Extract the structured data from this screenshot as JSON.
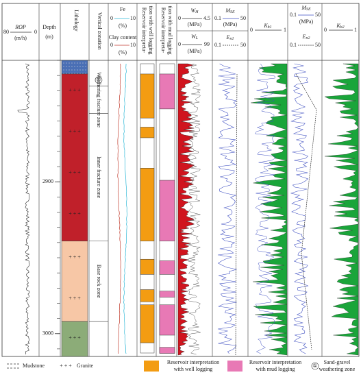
{
  "header": {
    "rop": {
      "min": "80",
      "name": "ROP",
      "unit": "(m/h)",
      "max": "0"
    },
    "depth": {
      "name": "Depth",
      "unit": "(m)"
    },
    "lithology": "Lithology",
    "zonation": "Vertical zonation",
    "fe": {
      "name": "Fe",
      "min": "0",
      "max": "10",
      "unit": "(%)"
    },
    "clay": {
      "name": "Clay content",
      "min": "0",
      "max": "10",
      "unit": "(%)"
    },
    "res_well": [
      "Reservoir interpreta-",
      "tion with well logging"
    ],
    "res_mud": [
      "Reservoir interpreta-",
      "tion with mud logging"
    ],
    "wh": {
      "symbol": "W",
      "sub": "H",
      "min": "0",
      "max": "4.5",
      "unit": "(MPa)"
    },
    "wl": {
      "symbol": "W",
      "sub": "L",
      "min": "0",
      "max": "99",
      "unit": "(MPa)"
    },
    "mse1": {
      "symbol": "M",
      "sub": "SE",
      "min": "0.1",
      "max": "50",
      "unit": "(MPa)"
    },
    "en1": {
      "symbol": "E",
      "sub": "n1",
      "min": "0.1",
      "max": "50"
    },
    "kb1": {
      "symbol": "K",
      "sub": "b1",
      "min": "0",
      "max": "1"
    },
    "mse2": {
      "symbol": "M",
      "sub": "SE",
      "min": "0.1",
      "max": "50",
      "unit": "(MPa)"
    },
    "en2": {
      "symbol": "E",
      "sub": "n2",
      "min": "0.1",
      "max": "50"
    },
    "kb2": {
      "symbol": "K",
      "sub": "b2",
      "min": "0",
      "max": "1"
    }
  },
  "depth_axis": {
    "range": [
      2820,
      3015
    ],
    "ticks": [
      2900,
      3000
    ]
  },
  "lithology": [
    {
      "top": 2820,
      "bottom": 2829,
      "rock": "Mudstone",
      "color": "#4a6fb5"
    },
    {
      "top": 2829,
      "bottom": 2939,
      "rock": "Granite",
      "color": "#c0202a"
    },
    {
      "top": 2939,
      "bottom": 2992,
      "rock": "Granite",
      "color": "#f7c7a6"
    },
    {
      "top": 2992,
      "bottom": 3015,
      "rock": "Granite",
      "color": "#8cac78"
    }
  ],
  "zones": [
    {
      "top": 2829,
      "bottom": 2837,
      "label": "①"
    },
    {
      "top": 2837,
      "bottom": 2855,
      "label": "Weathering fracture zone"
    },
    {
      "top": 2855,
      "bottom": 2939,
      "label": "Inner fracture zone"
    },
    {
      "top": 2939,
      "bottom": 2992,
      "label": "Base rock zone"
    }
  ],
  "reservoir_well": {
    "color": "#f39c12",
    "intervals": [
      [
        2829,
        2858
      ],
      [
        2864,
        2871
      ],
      [
        2891,
        2939
      ],
      [
        2951,
        2961
      ],
      [
        2971,
        2979
      ],
      [
        2981,
        3006
      ]
    ]
  },
  "reservoir_mud": {
    "color": "#e879b5",
    "intervals": [
      [
        2829,
        2852
      ],
      [
        2899,
        2939
      ],
      [
        2952,
        2961
      ],
      [
        2972,
        2976
      ],
      [
        2981,
        3001
      ],
      [
        3009,
        3013
      ]
    ]
  },
  "legend": {
    "mudstone": "Mudstone",
    "granite": "Granite",
    "well": [
      "Reservoir interpretation",
      "with well logging"
    ],
    "mud": [
      "Reservoir interpretation",
      "with mud logging"
    ],
    "sand_symbol": "①",
    "sand": [
      "Sand-gravel",
      "weathering zone"
    ]
  }
}
